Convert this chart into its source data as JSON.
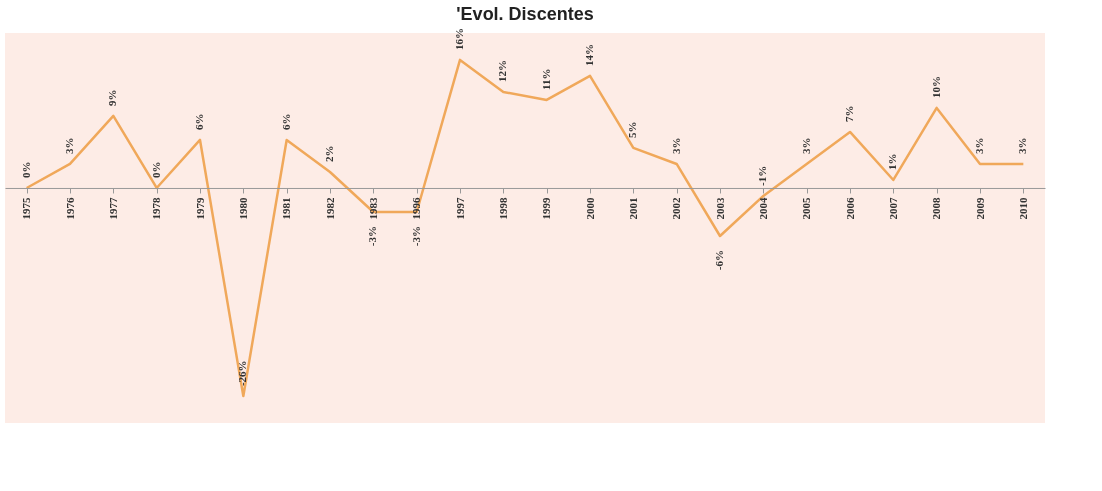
{
  "chart_data": {
    "type": "line",
    "title": "'Evol. Discentes",
    "categories": [
      "1975",
      "1976",
      "1977",
      "1978",
      "1979",
      "1980",
      "1981",
      "1982",
      "1983",
      "1996",
      "1997",
      "1998",
      "1999",
      "2000",
      "2001",
      "2002",
      "2003",
      "2004",
      "2005",
      "2006",
      "2007",
      "2008",
      "2009",
      "2010"
    ],
    "series": [
      {
        "color": "#f0a85a",
        "values": [
          0,
          3,
          9,
          0,
          6,
          -26,
          6,
          2,
          -3,
          -3,
          16,
          12,
          11,
          14,
          5,
          3,
          -6,
          -1,
          3,
          7,
          1,
          10,
          3,
          3
        ],
        "value_labels": [
          "0%",
          "3%",
          "9%",
          "0%",
          "6%",
          "-26%",
          "6%",
          "2%",
          "-3%",
          "-3%",
          "16%",
          "12%",
          "11%",
          "14%",
          "5%",
          "3%",
          "-6%",
          "-1%",
          "3%",
          "7%",
          "1%",
          "10%",
          "3%",
          "3%"
        ]
      }
    ],
    "grid": false,
    "legend": false,
    "marker": "none",
    "line_style": "solid"
  }
}
